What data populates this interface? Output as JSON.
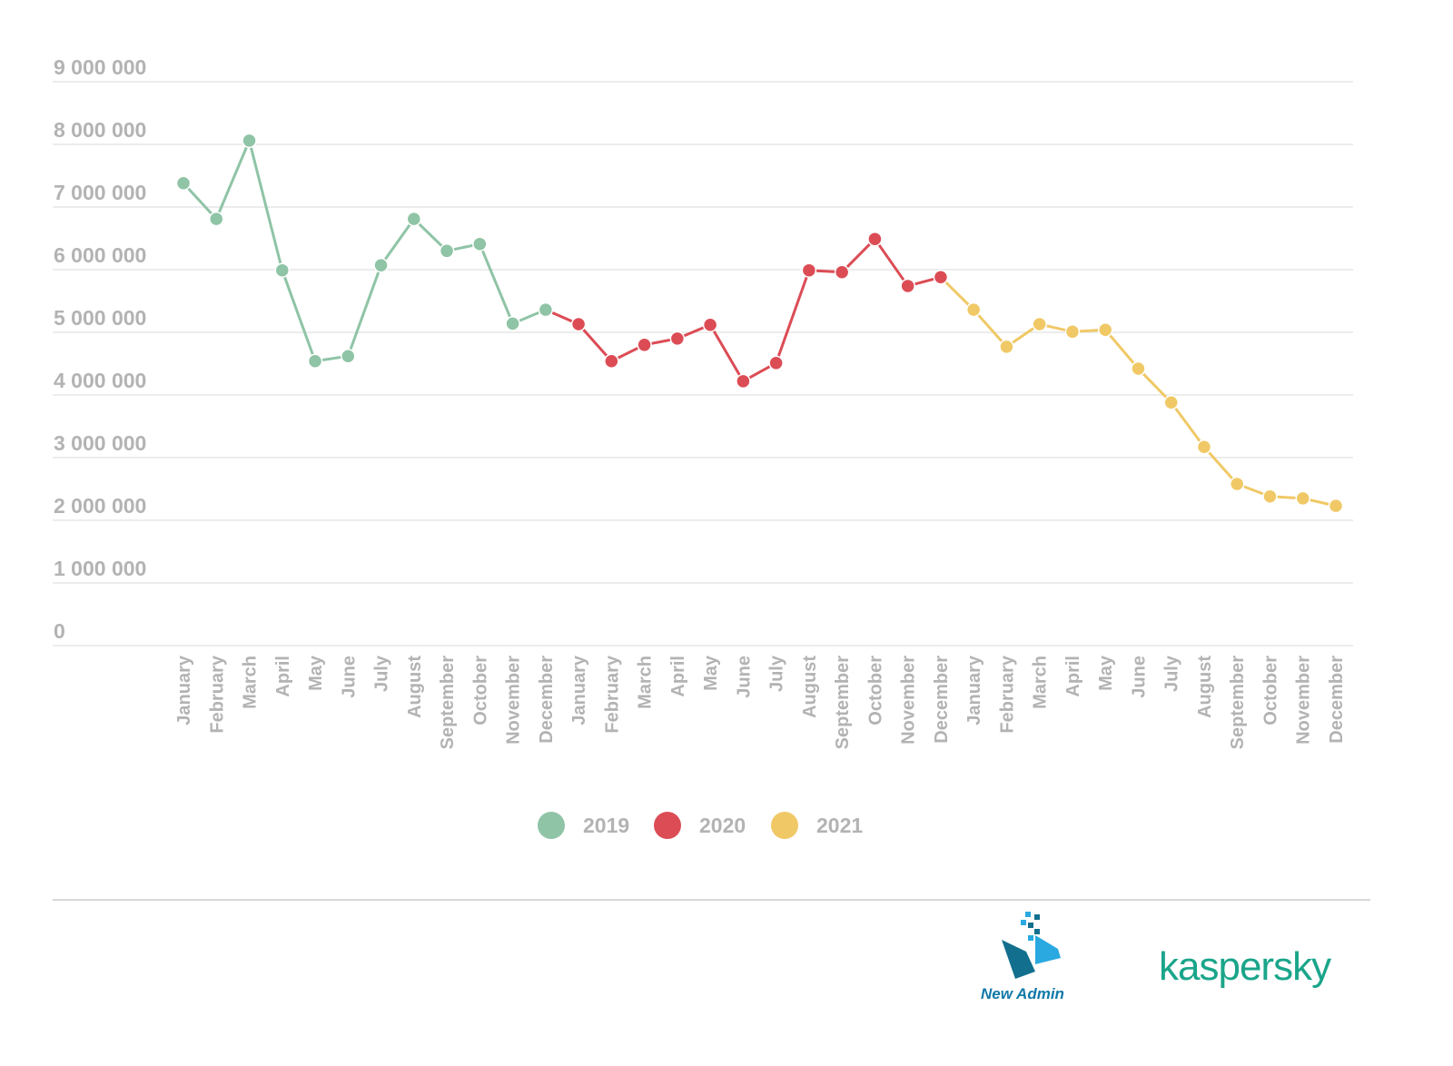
{
  "chart_data": {
    "type": "line",
    "title": "",
    "xlabel": "",
    "ylabel": "",
    "ylim": [
      0,
      9000000
    ],
    "yticks": [
      0,
      1000000,
      2000000,
      3000000,
      4000000,
      5000000,
      6000000,
      7000000,
      8000000,
      9000000
    ],
    "ytick_labels": [
      "0",
      "1 000 000",
      "2 000 000",
      "3 000 000",
      "4 000 000",
      "5 000 000",
      "6 000 000",
      "7 000 000",
      "8 000 000",
      "9 000 000"
    ],
    "grid": true,
    "legend_position": "bottom-center",
    "months": [
      "January",
      "February",
      "March",
      "April",
      "May",
      "June",
      "July",
      "August",
      "September",
      "October",
      "November",
      "December"
    ],
    "series": [
      {
        "name": "2019",
        "color": "#8fc4a6",
        "values": [
          7380000,
          6810000,
          8060000,
          5990000,
          4540000,
          4620000,
          6070000,
          6810000,
          6300000,
          6410000,
          5140000,
          5360000
        ]
      },
      {
        "name": "2020",
        "color": "#dc4c55",
        "values": [
          5130000,
          4540000,
          4800000,
          4900000,
          5120000,
          4220000,
          4510000,
          5990000,
          5960000,
          6490000,
          5740000,
          5880000
        ]
      },
      {
        "name": "2021",
        "color": "#f0c966",
        "values": [
          5360000,
          4770000,
          5130000,
          5010000,
          5040000,
          4420000,
          3880000,
          3170000,
          2580000,
          2380000,
          2350000,
          2230000
        ]
      }
    ]
  },
  "logos": {
    "new_admin": "New Admin",
    "kaspersky": "kaspersky"
  }
}
